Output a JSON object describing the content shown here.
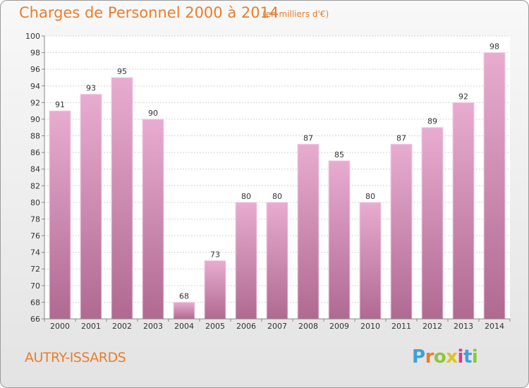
{
  "header": {
    "title": "Charges de Personnel 2000 à 2014",
    "subtitle": "(en milliers d'€)"
  },
  "footer": {
    "commune": "AUTRY-ISSARDS",
    "logo_letters": [
      "P",
      "r",
      "o",
      "x",
      "i",
      "t",
      "i"
    ]
  },
  "colors": {
    "accent": "#e87e2c",
    "bar_top": "#e8acd0",
    "bar_bottom": "#b06a92",
    "logo": [
      "#3fa0d8",
      "#e87e2c",
      "#8cc63e",
      "#e0c21e",
      "#d83a8c",
      "#3fa0d8",
      "#8cc63e"
    ]
  },
  "chart_data": {
    "type": "bar",
    "title": "Charges de Personnel 2000 à 2014",
    "subtitle": "(en milliers d'€)",
    "categories": [
      "2000",
      "2001",
      "2002",
      "2003",
      "2004",
      "2005",
      "2006",
      "2007",
      "2008",
      "2009",
      "2010",
      "2011",
      "2012",
      "2013",
      "2014"
    ],
    "values": [
      91,
      93,
      95,
      90,
      68,
      73,
      80,
      80,
      87,
      85,
      80,
      87,
      89,
      92,
      98
    ],
    "ylim": [
      66,
      100
    ],
    "yticks": [
      66,
      68,
      70,
      72,
      74,
      76,
      78,
      80,
      82,
      84,
      86,
      88,
      90,
      92,
      94,
      96,
      98,
      100
    ],
    "grid": true,
    "xlabel": "",
    "ylabel": ""
  }
}
